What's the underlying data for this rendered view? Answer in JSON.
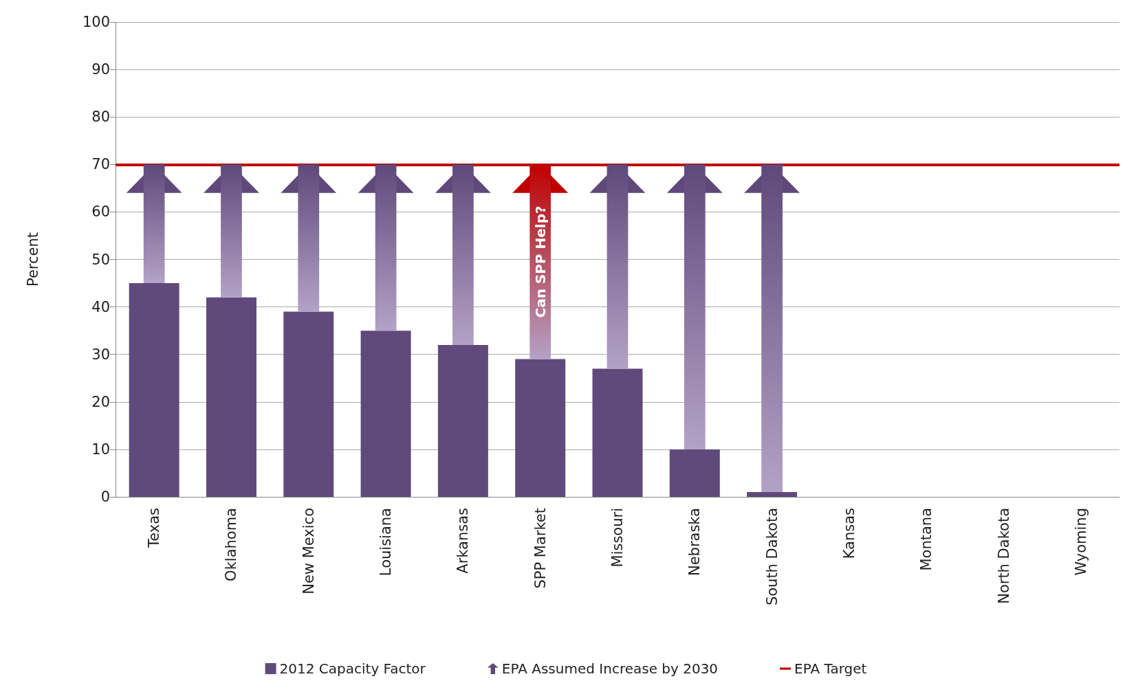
{
  "chart_data": {
    "type": "bar",
    "stacked": true,
    "ylabel": "Percent",
    "categories": [
      "Texas",
      "Oklahoma",
      "New Mexico",
      "Louisiana",
      "Arkansas",
      "SPP Market",
      "Missouri",
      "Nebraska",
      "South Dakota",
      "Kansas",
      "Montana",
      "North Dakota",
      "Wyoming"
    ],
    "series": [
      {
        "name": "2012 Capacity Factor",
        "color": "#604a7b",
        "values": [
          45,
          42,
          39,
          35,
          32,
          29,
          27,
          10,
          1,
          null,
          null,
          null,
          null
        ]
      },
      {
        "name": "EPA Assumed Increase by 2030",
        "marker": "triangle",
        "color": "#5f497a",
        "colors": [
          "#5f497a",
          "#5f497a",
          "#5f497a",
          "#5f497a",
          "#5f497a",
          "#c00000",
          "#5f497a",
          "#5f497a",
          "#5f497a",
          null,
          null,
          null,
          null
        ],
        "values": [
          25,
          28,
          31,
          35,
          38,
          41,
          43,
          60,
          69,
          null,
          null,
          null,
          null
        ]
      }
    ],
    "ref_lines": [
      {
        "axis": "y",
        "value": 70,
        "label": "EPA Target",
        "color": "#c00000"
      }
    ],
    "annotations": [
      "Can SPP Help?"
    ],
    "ylim": [
      0,
      100
    ],
    "yticks": [
      0,
      10,
      20,
      30,
      40,
      50,
      60,
      70,
      80,
      90,
      100
    ],
    "grid": "y",
    "legend": "bottom"
  }
}
